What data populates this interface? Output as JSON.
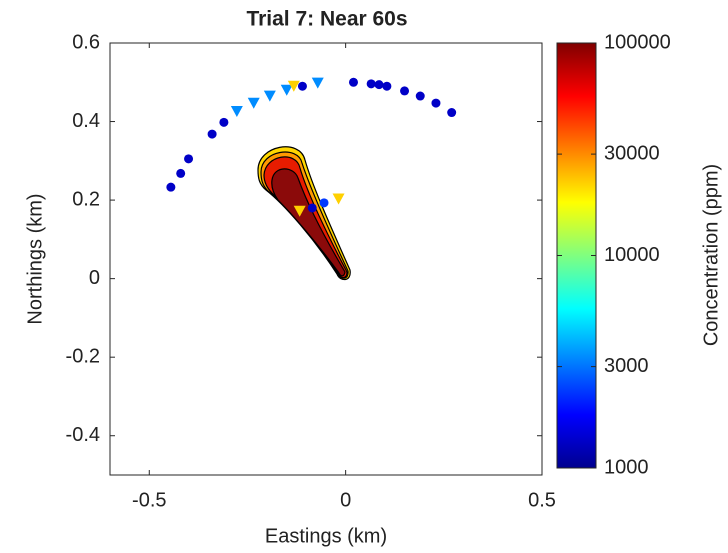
{
  "chart_data": {
    "type": "scatter",
    "title": "Trial 7: Near 60s",
    "xlabel": "Eastings (km)",
    "ylabel": "Northings (km)",
    "xlim": [
      -0.6,
      0.5
    ],
    "ylim": [
      -0.5,
      0.6
    ],
    "xticks": [
      -0.5,
      0,
      0.5
    ],
    "yticks": [
      -0.4,
      -0.2,
      0,
      0.2,
      0.4,
      0.6
    ],
    "series": [
      {
        "marker": "circle",
        "x": [
          -0.445,
          -0.42,
          -0.4,
          -0.34,
          -0.31,
          -0.11,
          0.02,
          0.065,
          0.085,
          0.105,
          0.15,
          0.19,
          0.23,
          0.27,
          -0.085,
          -0.055
        ],
        "y": [
          0.233,
          0.268,
          0.305,
          0.368,
          0.398,
          0.49,
          0.5,
          0.496,
          0.494,
          0.49,
          0.478,
          0.465,
          0.447,
          0.423,
          0.18,
          0.193
        ],
        "concentration": [
          1000,
          1000,
          1000,
          1000,
          1000,
          1000,
          1000,
          1000,
          1000,
          1000,
          1000,
          1000,
          1000,
          1000,
          1000,
          1800
        ]
      },
      {
        "marker": "triangle",
        "x": [
          -0.277,
          -0.234,
          -0.193,
          -0.15,
          -0.132,
          -0.071,
          -0.117,
          -0.018
        ],
        "y": [
          0.427,
          0.448,
          0.466,
          0.481,
          0.491,
          0.499,
          0.173,
          0.204
        ],
        "concentration": [
          2800,
          2800,
          2800,
          2800,
          25000,
          2800,
          25000,
          25000
        ]
      }
    ],
    "colorbar": {
      "label": "Concentration (ppm)",
      "scale": "log",
      "colormap": "jet",
      "lim": [
        1000,
        100000
      ],
      "ticks": [
        1000,
        3000,
        10000,
        30000,
        100000
      ]
    }
  }
}
